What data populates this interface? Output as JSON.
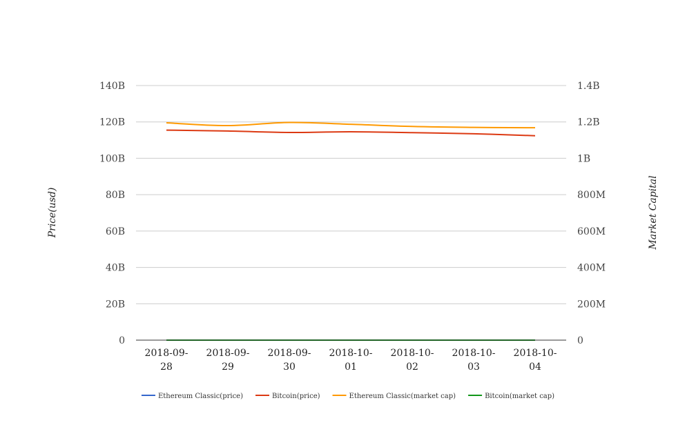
{
  "chart_data": {
    "type": "line",
    "categories": [
      "2018-09-28",
      "2018-09-29",
      "2018-09-30",
      "2018-10-01",
      "2018-10-02",
      "2018-10-03",
      "2018-10-04"
    ],
    "category_label_lines": [
      [
        "2018-09-",
        "28"
      ],
      [
        "2018-09-",
        "29"
      ],
      [
        "2018-09-",
        "30"
      ],
      [
        "2018-10-",
        "01"
      ],
      [
        "2018-10-",
        "02"
      ],
      [
        "2018-10-",
        "03"
      ],
      [
        "2018-10-",
        "04"
      ]
    ],
    "ylabel_left": "Price(usd)",
    "ylabel_right": "Market Capital",
    "ylim_left": [
      0,
      140000000000
    ],
    "ylim_right": [
      0,
      1400000000
    ],
    "left_ticks": [
      "0",
      "20B",
      "40B",
      "60B",
      "80B",
      "100B",
      "120B",
      "140B"
    ],
    "right_ticks": [
      "0",
      "200M",
      "400M",
      "600M",
      "800M",
      "1B",
      "1.2B",
      "1.4B"
    ],
    "grid": true,
    "legend_position": "bottom",
    "series": [
      {
        "name": "Ethereum Classic(price)",
        "axis": "left",
        "color": "#3366cc",
        "values": [
          11.1,
          10.9,
          11.4,
          11.3,
          11.0,
          10.8,
          10.6
        ]
      },
      {
        "name": "Bitcoin(price)",
        "axis": "left",
        "color": "#dc3912",
        "values": [
          115500000000,
          115000000000,
          114200000000,
          114600000000,
          114100000000,
          113500000000,
          112400000000
        ]
      },
      {
        "name": "Ethereum Classic(market cap)",
        "axis": "right",
        "color": "#ff9900",
        "values": [
          1195000000,
          1180000000,
          1197000000,
          1187000000,
          1175000000,
          1170000000,
          1168000000
        ]
      },
      {
        "name": "Bitcoin(market cap)",
        "axis": "right",
        "color": "#109618",
        "values": [
          6600,
          6550,
          6610,
          6590,
          6540,
          6500,
          6450
        ]
      }
    ]
  }
}
